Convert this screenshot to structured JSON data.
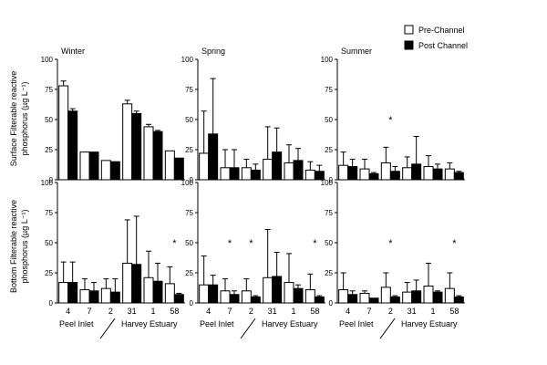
{
  "legend": {
    "pre": "Pre-Channel",
    "post": "Post Channel",
    "pre_color": "#ffffff",
    "post_color": "#000000",
    "placement": "top-right"
  },
  "y_label_surface": [
    "Surface Filterable reactive",
    "phosphorus (µg L⁻¹)"
  ],
  "y_label_bottom": [
    "Bottom Filterable reactive",
    "phosphorus (µg L⁻¹)"
  ],
  "x_group_labels": [
    "Peel Inlet",
    "Harvey Estuary"
  ],
  "chart_data": [
    {
      "type": "bar",
      "title": "Winter",
      "layer": "Surface",
      "categories": [
        "4",
        "7",
        "2",
        "31",
        "1",
        "58"
      ],
      "ylim": [
        0,
        100
      ],
      "yticks": [
        0,
        25,
        50,
        75,
        100
      ],
      "series": [
        {
          "name": "Pre-Channel",
          "values": [
            78,
            23,
            16,
            63,
            44,
            24
          ],
          "errors": [
            4,
            0,
            0,
            3,
            2,
            0
          ]
        },
        {
          "name": "Post Channel",
          "values": [
            57,
            23,
            15,
            55,
            40,
            18
          ],
          "errors": [
            2,
            0,
            0,
            2,
            1,
            0
          ]
        }
      ],
      "significant": []
    },
    {
      "type": "bar",
      "title": "Spring",
      "layer": "Surface",
      "categories": [
        "4",
        "7",
        "2",
        "31",
        "1",
        "58"
      ],
      "ylim": [
        0,
        100
      ],
      "yticks": [
        0,
        25,
        50,
        75,
        100
      ],
      "series": [
        {
          "name": "Pre-Channel",
          "values": [
            22,
            10,
            10,
            17,
            14,
            8
          ],
          "errors": [
            35,
            15,
            7,
            27,
            15,
            7
          ]
        },
        {
          "name": "Post Channel",
          "values": [
            38,
            10,
            8,
            23,
            16,
            7
          ],
          "errors": [
            46,
            15,
            5,
            20,
            10,
            5
          ]
        }
      ],
      "significant": []
    },
    {
      "type": "bar",
      "title": "Summer",
      "layer": "Surface",
      "categories": [
        "4",
        "7",
        "2",
        "31",
        "1",
        "58"
      ],
      "ylim": [
        0,
        100
      ],
      "yticks": [
        0,
        25,
        50,
        75,
        100
      ],
      "series": [
        {
          "name": "Pre-Channel",
          "values": [
            12,
            9,
            14,
            10,
            11,
            9
          ],
          "errors": [
            11,
            8,
            13,
            9,
            9,
            5
          ]
        },
        {
          "name": "Post Channel",
          "values": [
            11,
            5,
            7,
            13,
            9,
            6
          ],
          "errors": [
            6,
            1,
            4,
            23,
            4,
            1
          ]
        }
      ],
      "significant": [
        "2"
      ]
    },
    {
      "type": "bar",
      "title": "",
      "layer": "Bottom",
      "categories": [
        "4",
        "7",
        "2",
        "31",
        "1",
        "58"
      ],
      "ylim": [
        0,
        100
      ],
      "yticks": [
        0,
        25,
        50,
        75,
        100
      ],
      "series": [
        {
          "name": "Pre-Channel",
          "values": [
            17,
            11,
            12,
            33,
            21,
            16
          ],
          "errors": [
            17,
            9,
            8,
            36,
            22,
            14
          ]
        },
        {
          "name": "Post Channel",
          "values": [
            17,
            10,
            9,
            32,
            18,
            7
          ],
          "errors": [
            17,
            7,
            11,
            40,
            15,
            1
          ]
        }
      ],
      "significant": [
        "58"
      ]
    },
    {
      "type": "bar",
      "title": "",
      "layer": "Bottom",
      "categories": [
        "4",
        "7",
        "2",
        "31",
        "1",
        "58"
      ],
      "ylim": [
        0,
        100
      ],
      "yticks": [
        0,
        25,
        50,
        75,
        100
      ],
      "series": [
        {
          "name": "Pre-Channel",
          "values": [
            15,
            10,
            10,
            21,
            17,
            11
          ],
          "errors": [
            24,
            10,
            10,
            40,
            24,
            13
          ]
        },
        {
          "name": "Post Channel",
          "values": [
            15,
            7,
            5,
            22,
            12,
            5
          ],
          "errors": [
            8,
            3,
            1,
            20,
            3,
            1
          ]
        }
      ],
      "significant": [
        "7",
        "2",
        "58"
      ]
    },
    {
      "type": "bar",
      "title": "",
      "layer": "Bottom",
      "categories": [
        "4",
        "7",
        "2",
        "31",
        "1",
        "58"
      ],
      "ylim": [
        0,
        100
      ],
      "yticks": [
        0,
        25,
        50,
        75,
        100
      ],
      "series": [
        {
          "name": "Pre-Channel",
          "values": [
            11,
            8,
            13,
            9,
            14,
            12
          ],
          "errors": [
            14,
            2,
            12,
            8,
            19,
            13
          ]
        },
        {
          "name": "Post Channel",
          "values": [
            7,
            4,
            5,
            10,
            9,
            5
          ],
          "errors": [
            3,
            0,
            1,
            9,
            1,
            1
          ]
        }
      ],
      "significant": [
        "2",
        "58"
      ]
    }
  ]
}
